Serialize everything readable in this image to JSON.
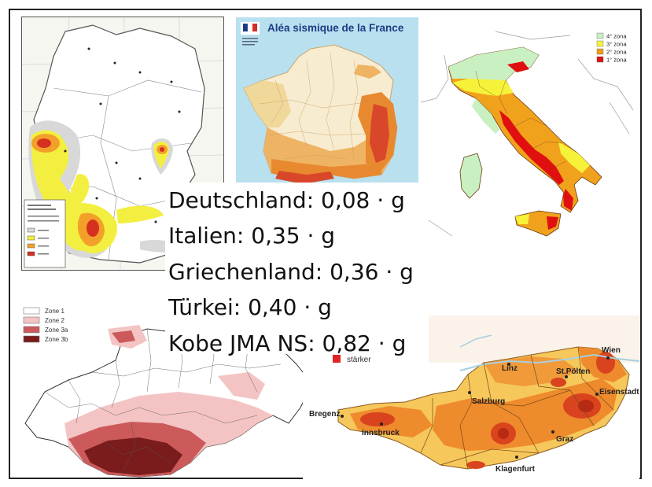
{
  "france": {
    "title": "Aléa sismique de la France"
  },
  "italy_legend": [
    {
      "label": "4° zona",
      "color": "#c8f0c0"
    },
    {
      "label": "3° zona",
      "color": "#f6f23a"
    },
    {
      "label": "2° zona",
      "color": "#f29a1a"
    },
    {
      "label": "1° zona",
      "color": "#e01010"
    }
  ],
  "switzerland_legend": [
    {
      "label": "Zone 1",
      "color": "#ffffff"
    },
    {
      "label": "Zone 2",
      "color": "#f4c4c4"
    },
    {
      "label": "Zone 3a",
      "color": "#cc5a5a"
    },
    {
      "label": "Zone 3b",
      "color": "#7a1c1c"
    }
  ],
  "austria": {
    "legend_label": "stärker",
    "cities": [
      "Wien",
      "Linz",
      "St.Pölten",
      "Eisenstadt",
      "Salzburg",
      "Bregenz",
      "Innsbruck",
      "Graz",
      "Klagenfurt"
    ]
  },
  "values": [
    "Deutschland: 0,08 · g",
    "Italien: 0,35 · g",
    "Griechenland: 0,36 · g",
    "Türkei: 0,40 · g",
    "Kobe JMA NS: 0,82 · g"
  ]
}
